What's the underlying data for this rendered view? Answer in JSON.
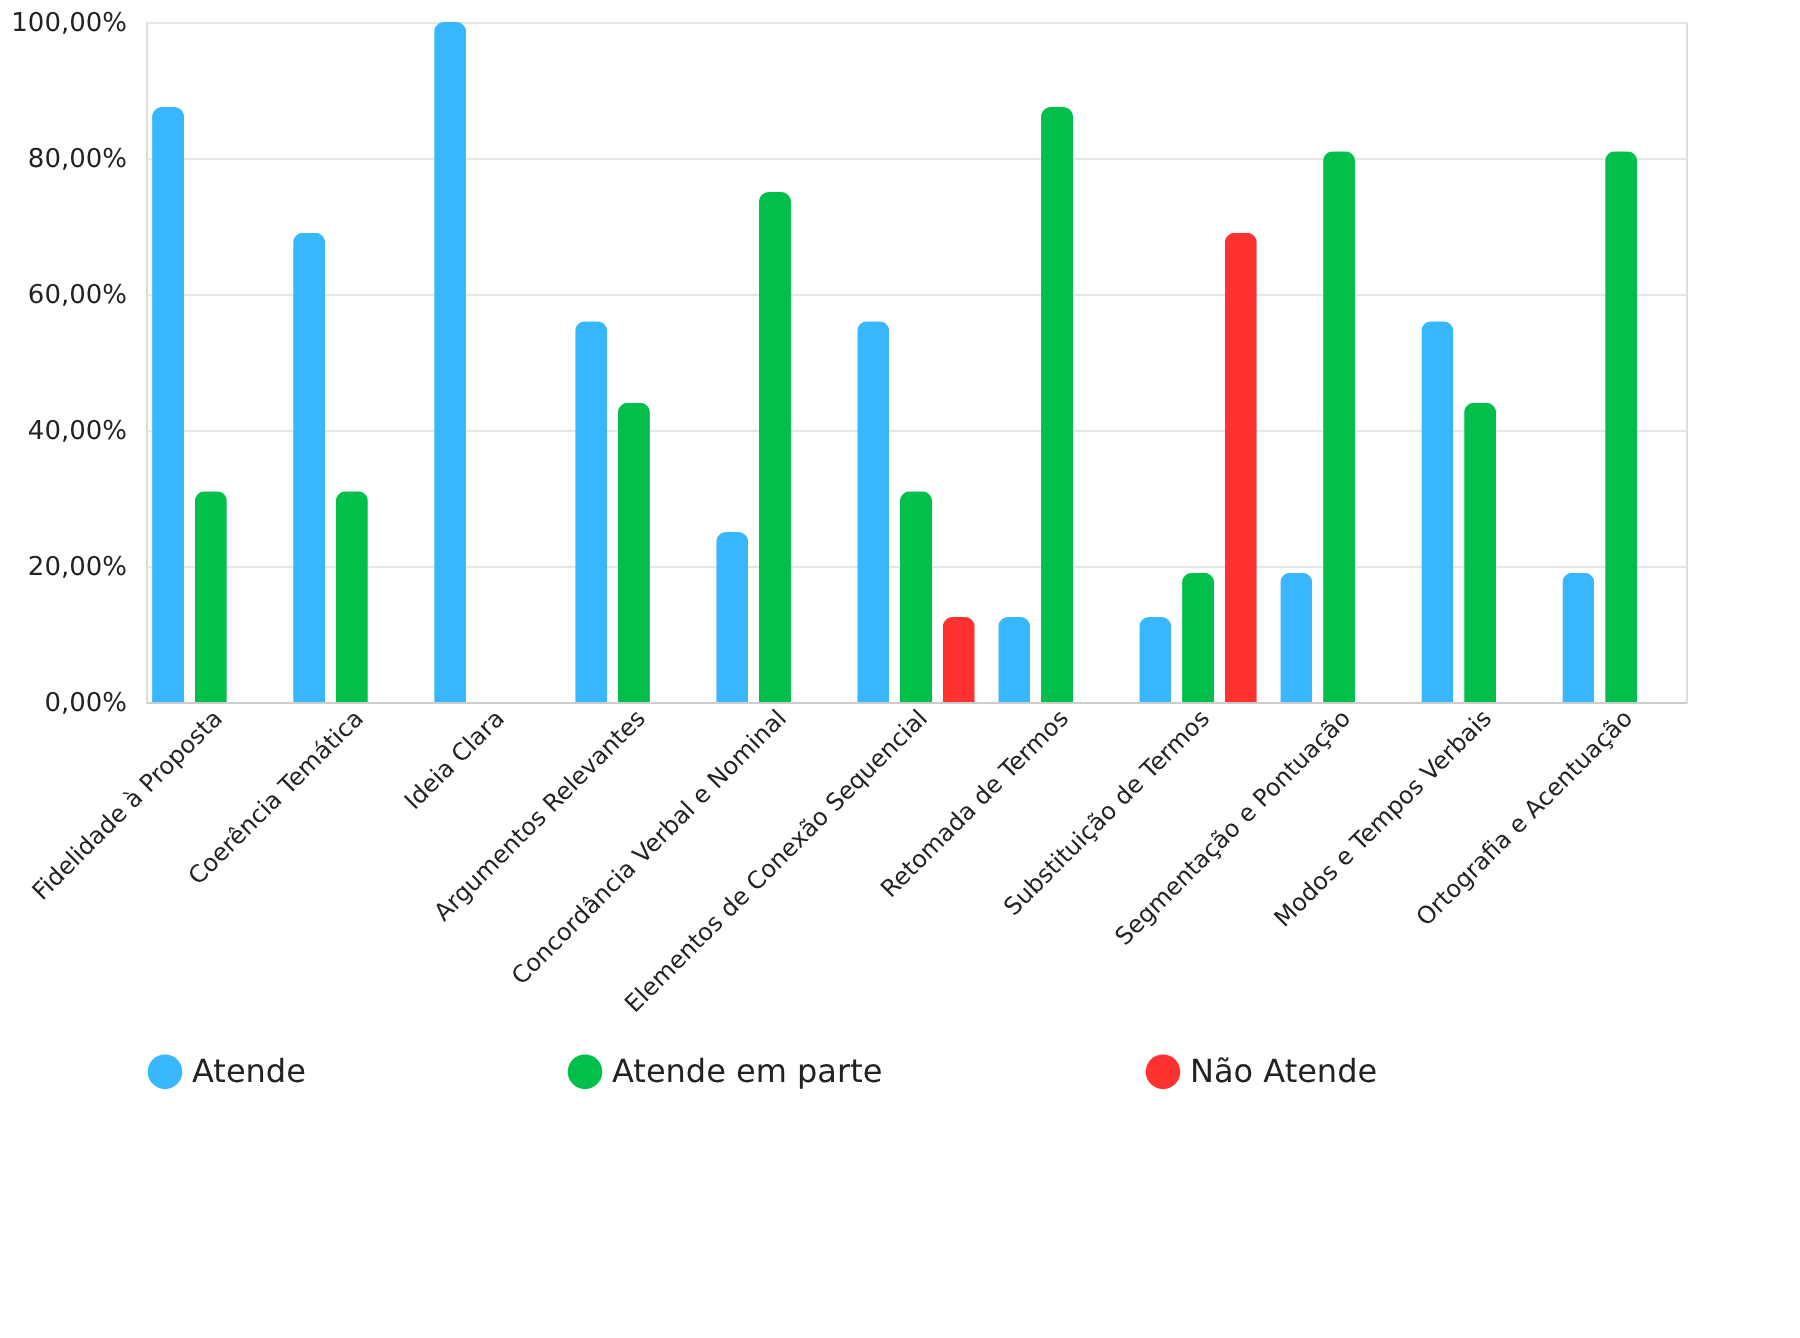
{
  "chart_data": {
    "type": "bar",
    "categories": [
      "Fidelidade à Proposta",
      "Coerência Temática",
      "Ideia Clara",
      "Argumentos Relevantes",
      "Concordância Verbal e Nominal",
      "Elementos de Conexão Sequencial",
      "Retomada de Termos",
      "Substituição de Termos",
      "Segmentação e Pontuação",
      "Modos e Tempos Verbais",
      "Ortografia e Acentuação"
    ],
    "series": [
      {
        "name": "Atende",
        "color": "#38b6ff",
        "values": [
          87.5,
          69,
          100,
          56,
          25,
          56,
          12.5,
          12.5,
          19,
          56,
          19
        ]
      },
      {
        "name": "Atende em parte",
        "color": "#00c04b",
        "values": [
          31,
          31,
          null,
          44,
          75,
          31,
          87.5,
          19,
          81,
          44,
          81
        ]
      },
      {
        "name": "Não Atende",
        "color": "#ff3131",
        "values": [
          null,
          null,
          null,
          null,
          null,
          12.5,
          null,
          69,
          null,
          null,
          null
        ]
      }
    ],
    "ylim": [
      0,
      100
    ],
    "yticks": [
      {
        "value": 0,
        "label": "0,00%"
      },
      {
        "value": 20,
        "label": "20,00%"
      },
      {
        "value": 40,
        "label": "40,00%"
      },
      {
        "value": 60,
        "label": "60,00%"
      },
      {
        "value": 80,
        "label": "80,00%"
      },
      {
        "value": 100,
        "label": "100,00%"
      }
    ],
    "grid": "y",
    "legend": "bottom"
  }
}
